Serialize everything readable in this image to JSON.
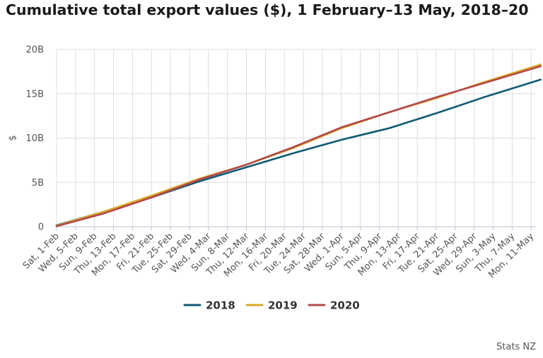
{
  "title": "Cumulative total export values ($), 1 February–13 May, 2018–20",
  "source": "Stats NZ",
  "colors": {
    "2018": "#0f5a73",
    "2019": "#d9a925",
    "2020": "#b2484a",
    "grid": "#d9dde6",
    "axis": "#b9c3d6"
  },
  "chart_data": {
    "type": "line",
    "ylabel": "$",
    "xlabel": "",
    "ylim": [
      0,
      20
    ],
    "yticks": [
      0,
      5,
      10,
      15,
      20
    ],
    "ytick_labels": [
      "0",
      "5B",
      "10B",
      "15B",
      "20B"
    ],
    "x_days": 102,
    "xtick_labels": [
      "Sat, 1-Feb",
      "Wed, 5-Feb",
      "Sun, 9-Feb",
      "Thu, 13-Feb",
      "Mon, 17-Feb",
      "Fri, 21-Feb",
      "Tue, 25-Feb",
      "Sat, 29-Feb",
      "Wed, 4-Mar",
      "Sun, 8-Mar",
      "Thu, 12-Mar",
      "Mon, 16-Mar",
      "Fri, 20-Mar",
      "Tue, 24-Mar",
      "Sat, 28-Mar",
      "Wed, 1-Apr",
      "Sun, 5-Apr",
      "Thu, 9-Apr",
      "Mon, 13-Apr",
      "Fri, 17-Apr",
      "Tue, 21-Apr",
      "Sat, 25-Apr",
      "Wed, 29-Apr",
      "Sun, 3-May",
      "Thu, 7-May",
      "Mon, 11-May"
    ],
    "grid": true,
    "legend": "bottom-center",
    "series": [
      {
        "name": "2018",
        "x": [
          "1-Feb",
          "11-Feb",
          "21-Feb",
          "2-Mar",
          "12-Mar",
          "22-Mar",
          "1-Apr",
          "11-Apr",
          "21-Apr",
          "1-May",
          "13-May"
        ],
        "values": [
          0.15,
          1.7,
          3.3,
          5.1,
          6.7,
          8.3,
          9.8,
          11.1,
          12.8,
          14.6,
          16.6
        ]
      },
      {
        "name": "2019",
        "x": [
          "1-Feb",
          "11-Feb",
          "21-Feb",
          "2-Mar",
          "12-Mar",
          "22-Mar",
          "1-Apr",
          "11-Apr",
          "21-Apr",
          "1-May",
          "13-May"
        ],
        "values": [
          0.1,
          1.7,
          3.5,
          5.4,
          7.0,
          8.9,
          11.1,
          12.9,
          14.5,
          16.3,
          18.3
        ]
      },
      {
        "name": "2020",
        "x": [
          "1-Feb",
          "11-Feb",
          "21-Feb",
          "2-Mar",
          "12-Mar",
          "22-Mar",
          "1-Apr",
          "11-Apr",
          "21-Apr",
          "1-May",
          "13-May"
        ],
        "values": [
          0.05,
          1.5,
          3.3,
          5.3,
          7.0,
          9.0,
          11.2,
          12.9,
          14.6,
          16.2,
          18.1
        ]
      }
    ]
  }
}
